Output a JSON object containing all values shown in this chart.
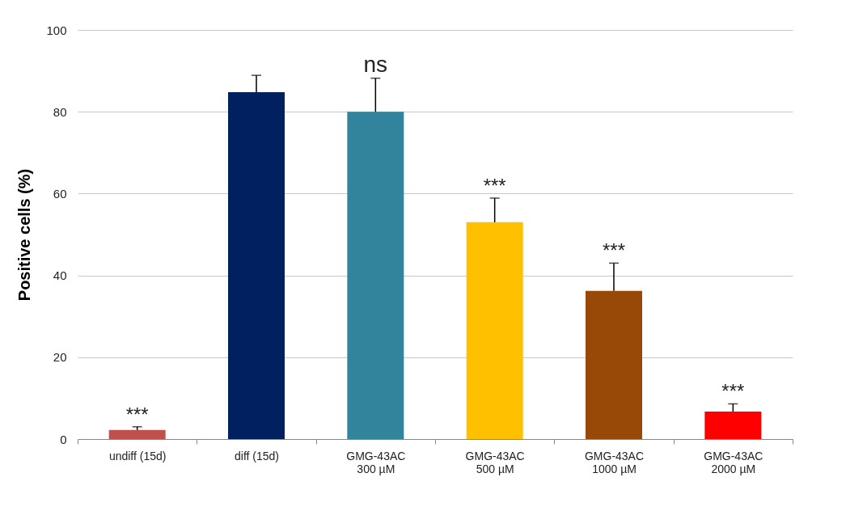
{
  "chart_data": {
    "type": "bar",
    "ylabel": "Positive cells (%)",
    "categories": [
      "undiff (15d)",
      "diff (15d)",
      "GMG-43AC\n300 µM",
      "GMG-43AC\n500 µM",
      "GMG-43AC\n1000 µM",
      "GMG-43AC\n2000 µM"
    ],
    "values": [
      2.2,
      84.8,
      80,
      53,
      36.2,
      6.7
    ],
    "colors": [
      "#c0504d",
      "#002060",
      "#31849b",
      "#ffc000",
      "#984807",
      "#ff0000"
    ],
    "errors": [
      [
        2.2,
        3
      ],
      [
        84.8,
        88.9
      ],
      [
        80,
        88.2
      ],
      [
        53,
        58.9
      ],
      [
        36.2,
        43
      ],
      [
        6.7,
        8.6
      ]
    ],
    "ylim": [
      0,
      100
    ],
    "yticks": [
      0,
      20,
      40,
      60,
      80,
      100
    ],
    "grid": "y",
    "annotations": [
      {
        "text": "***",
        "x": "undiff (15d)",
        "y": 3
      },
      {
        "text": "ns",
        "x": "GMG-43AC\n300 µM",
        "y": 88.2
      },
      {
        "text": "***",
        "x": "GMG-43AC\n500 µM",
        "y": 58.9
      },
      {
        "text": "***",
        "x": "GMG-43AC\n1000 µM",
        "y": 43
      },
      {
        "text": "***",
        "x": "GMG-43AC\n2000 µM",
        "y": 8.6
      }
    ]
  }
}
